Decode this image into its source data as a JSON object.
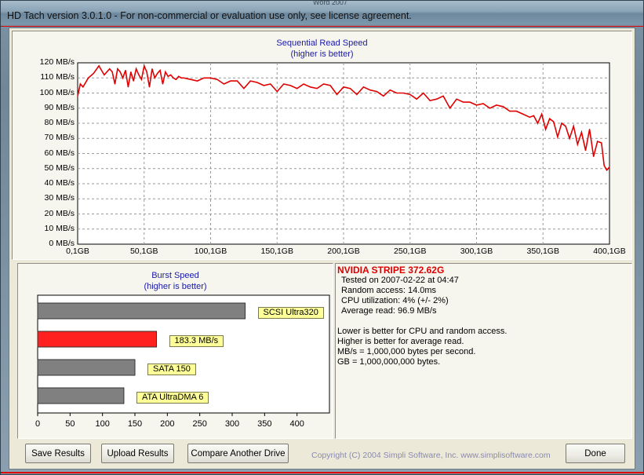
{
  "window": {
    "background_title": "Word 2007",
    "title": "HD Tach version 3.0.1.0  - For non-commercial or evaluation use only, see license agreement."
  },
  "colors": {
    "series": "#e00000",
    "burst_highlight": "#ff2020",
    "burst_bar": "#808080",
    "title_text": "#1a1aa6"
  },
  "chart_data": [
    {
      "type": "line",
      "title": "Sequential Read Speed",
      "subtitle": "(higher is better)",
      "ylim": [
        0,
        120
      ],
      "xlim": [
        0,
        400
      ],
      "yticks": [
        "0 MB/s",
        "10 MB/s",
        "20 MB/s",
        "30 MB/s",
        "40 MB/s",
        "50 MB/s",
        "60 MB/s",
        "70 MB/s",
        "80 MB/s",
        "90 MB/s",
        "100 MB/s",
        "110 MB/s",
        "120 MB/s"
      ],
      "xticks": [
        "0,1GB",
        "50,1GB",
        "100,1GB",
        "150,1GB",
        "200,1GB",
        "250,1GB",
        "300,1GB",
        "350,1GB",
        "400,1GB"
      ],
      "grid": true,
      "series": [
        {
          "x": [
            0,
            2,
            4,
            8,
            12,
            16,
            20,
            24,
            26,
            28,
            30,
            32,
            34,
            36,
            38,
            40,
            42,
            44,
            46,
            48,
            50,
            52,
            54,
            56,
            58,
            60,
            62,
            64,
            66,
            68,
            70,
            72,
            74,
            76,
            78,
            80,
            85,
            90,
            95,
            100,
            105,
            110,
            115,
            120,
            125,
            130,
            135,
            140,
            145,
            150,
            155,
            160,
            165,
            170,
            175,
            180,
            185,
            190,
            195,
            200,
            205,
            210,
            215,
            220,
            225,
            230,
            235,
            240,
            245,
            250,
            255,
            260,
            265,
            270,
            275,
            280,
            285,
            290,
            295,
            300,
            305,
            310,
            315,
            320,
            325,
            330,
            335,
            340,
            343,
            346,
            349,
            352,
            355,
            358,
            361,
            364,
            367,
            370,
            373,
            376,
            379,
            382,
            385,
            388,
            391,
            394,
            396,
            398,
            400
          ],
          "values": [
            98,
            106,
            104,
            110,
            113,
            118,
            112,
            116,
            114,
            106,
            116,
            114,
            110,
            115,
            104,
            114,
            108,
            116,
            112,
            109,
            118,
            114,
            104,
            116,
            110,
            113,
            115,
            106,
            114,
            111,
            112,
            110,
            109,
            111,
            110,
            110,
            109,
            108,
            110,
            110,
            109,
            106,
            108,
            108,
            103,
            108,
            107,
            105,
            106,
            101,
            106,
            105,
            103,
            106,
            104,
            103,
            106,
            105,
            99,
            104,
            103,
            99,
            104,
            102,
            101,
            98,
            102,
            100,
            100,
            99,
            96,
            100,
            95,
            96,
            98,
            90,
            96,
            94,
            94,
            92,
            93,
            90,
            92,
            91,
            88,
            88,
            86,
            84,
            85,
            80,
            86,
            76,
            83,
            81,
            71,
            80,
            78,
            70,
            78,
            66,
            74,
            62,
            76,
            58,
            68,
            67,
            52,
            49,
            51
          ]
        }
      ]
    },
    {
      "type": "bar",
      "orientation": "horizontal",
      "title": "Burst Speed",
      "subtitle": "(higher is better)",
      "xlim": [
        0,
        450
      ],
      "xticks": [
        "0",
        "50",
        "100",
        "150",
        "200",
        "250",
        "300",
        "350",
        "400"
      ],
      "categories": [
        "SCSI Ultra320",
        "183.3 MB/s",
        "SATA 150",
        "ATA UltraDMA 6"
      ],
      "values": [
        320,
        183.3,
        150,
        133
      ],
      "highlight_index": 1
    }
  ],
  "info": {
    "drive_name": "NVIDIA STRIPE  372.62G",
    "lines": [
      "Tested on 2007-02-22 at 04:47",
      "Random access: 14.0ms",
      "CPU utilization: 4% (+/- 2%)",
      "Average read: 96.9 MB/s"
    ],
    "notes": [
      "Lower is better for CPU and random access.",
      "Higher is better for average read.",
      "MB/s = 1,000,000 bytes per second.",
      "GB = 1,000,000,000 bytes."
    ]
  },
  "buttons": {
    "save": "Save Results",
    "upload": "Upload Results",
    "compare": "Compare Another Drive",
    "done": "Done"
  },
  "copyright": "Copyright (C) 2004 Simpli Software, Inc. www.simplisoftware.com"
}
